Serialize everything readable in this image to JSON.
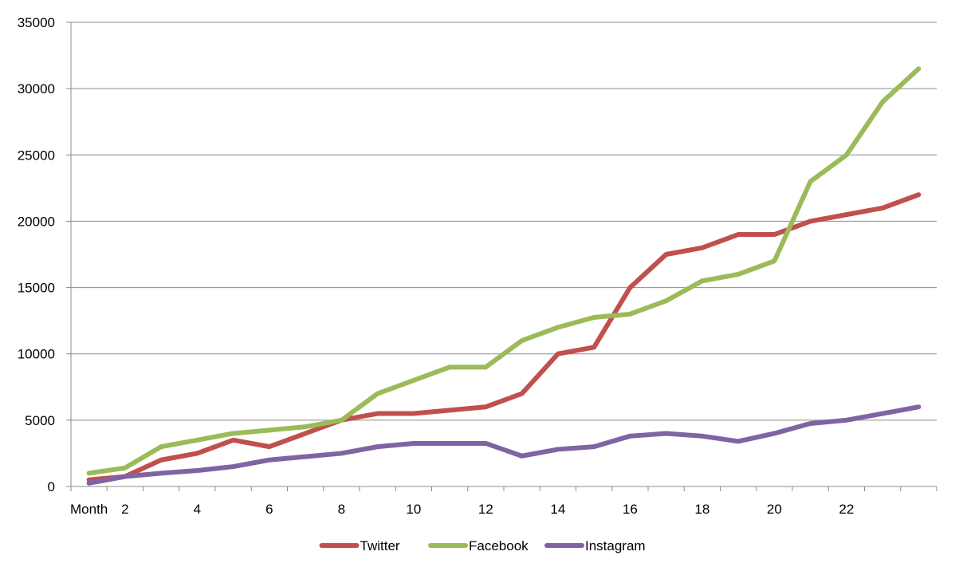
{
  "chart_data": {
    "type": "line",
    "title": "",
    "xlabel": "",
    "ylabel": "",
    "x": [
      1,
      2,
      3,
      4,
      5,
      6,
      7,
      8,
      9,
      10,
      11,
      12,
      13,
      14,
      15,
      16,
      17,
      18,
      19,
      20,
      21,
      22,
      23,
      24
    ],
    "x_tick_labels": [
      "Month",
      "2",
      "4",
      "6",
      "8",
      "10",
      "12",
      "14",
      "16",
      "18",
      "20",
      "22"
    ],
    "y_ticks": [
      0,
      5000,
      10000,
      15000,
      20000,
      25000,
      30000,
      35000
    ],
    "ylim": [
      0,
      35000
    ],
    "grid": "horizontal",
    "legend_position": "bottom",
    "series": [
      {
        "name": "Twitter",
        "color": "#c0504d",
        "values": [
          500,
          750,
          2000,
          2500,
          3500,
          3000,
          4000,
          5000,
          5500,
          5500,
          5750,
          6000,
          7000,
          10000,
          10500,
          15000,
          17500,
          18000,
          19000,
          19000,
          20000,
          20500,
          21000,
          22000
        ]
      },
      {
        "name": "Facebook",
        "color": "#9bbb59",
        "values": [
          1000,
          1400,
          3000,
          3500,
          4000,
          4250,
          4500,
          5000,
          7000,
          8000,
          9000,
          9000,
          11000,
          12000,
          12750,
          13000,
          14000,
          15500,
          16000,
          17000,
          23000,
          25000,
          29000,
          31500
        ]
      },
      {
        "name": "Instagram",
        "color": "#8064a2",
        "values": [
          250,
          750,
          1000,
          1200,
          1500,
          2000,
          2250,
          2500,
          3000,
          3250,
          3250,
          3250,
          2300,
          2800,
          3000,
          3800,
          4000,
          3800,
          3400,
          4000,
          4750,
          5000,
          5500,
          6000
        ]
      }
    ]
  }
}
